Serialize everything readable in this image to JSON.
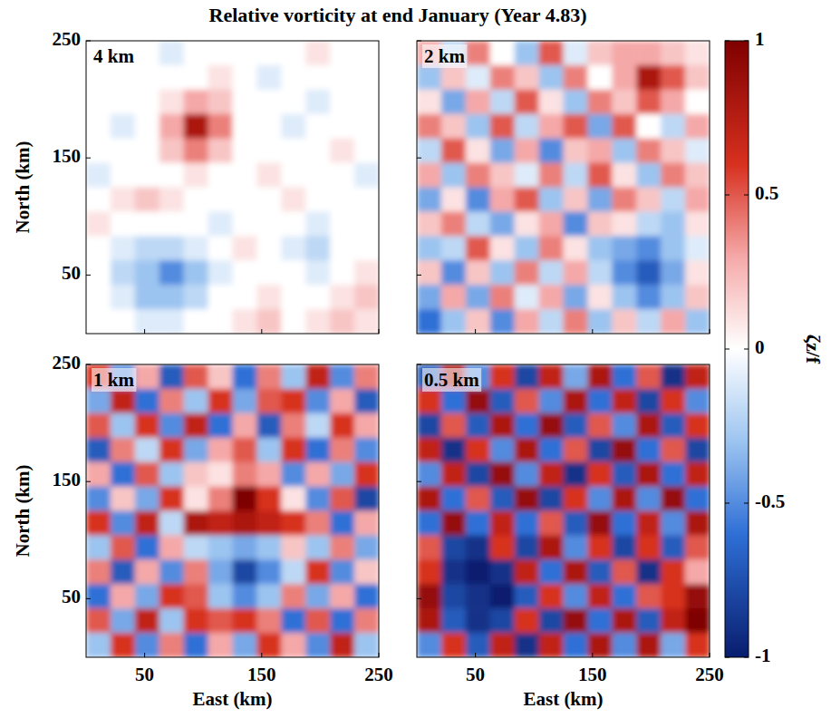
{
  "title": "Relative vorticity at end January (Year 4.83)",
  "colorbar": {
    "range": [
      -1,
      1
    ],
    "ticks": [
      -1,
      -0.5,
      0,
      0.5,
      1
    ],
    "label": "ζz/f"
  },
  "chart_data": [
    {
      "type": "heatmap",
      "panel_label": "4 km",
      "xlim": [
        0,
        250
      ],
      "ylim": [
        0,
        250
      ],
      "xticks": [
        50,
        150,
        250
      ],
      "yticks": [
        50,
        150,
        250
      ],
      "tick_labels": "y",
      "ylabel": "North (km)",
      "cells": [
        [
          0,
          0,
          0,
          -0.1,
          0,
          0,
          0,
          0,
          0,
          0.1,
          0,
          0
        ],
        [
          0,
          0,
          0,
          0,
          0,
          0.1,
          0,
          -0.1,
          0,
          0,
          0,
          0
        ],
        [
          0,
          0,
          0,
          0.1,
          0.3,
          0.2,
          0,
          0,
          0,
          -0.1,
          0,
          0
        ],
        [
          0,
          -0.1,
          0,
          0.3,
          0.8,
          0.4,
          0,
          0,
          -0.1,
          0,
          0,
          0
        ],
        [
          0,
          0,
          0,
          0.2,
          0.4,
          0.2,
          0,
          0,
          0,
          0,
          0.1,
          0
        ],
        [
          -0.1,
          0,
          0,
          0,
          0.1,
          0,
          0,
          0.1,
          0,
          0,
          0,
          -0.1
        ],
        [
          0,
          0.1,
          0.2,
          0.1,
          0,
          0,
          0,
          0,
          0.1,
          0,
          0,
          0
        ],
        [
          0.1,
          0,
          0,
          0,
          0,
          -0.1,
          0,
          0,
          0,
          -0.1,
          0,
          0
        ],
        [
          0,
          -0.1,
          -0.2,
          -0.2,
          -0.1,
          0,
          0.1,
          0,
          -0.1,
          -0.2,
          0,
          0
        ],
        [
          0,
          -0.2,
          -0.3,
          -0.5,
          -0.3,
          -0.1,
          0,
          0,
          0,
          -0.1,
          0,
          0.1
        ],
        [
          0,
          -0.1,
          -0.3,
          -0.3,
          -0.2,
          0,
          0,
          0.1,
          0,
          0,
          0.1,
          0.2
        ],
        [
          0,
          0,
          -0.1,
          -0.1,
          0,
          0,
          0.1,
          0.2,
          0,
          0.1,
          0.2,
          0.1
        ]
      ]
    },
    {
      "type": "heatmap",
      "panel_label": "2 km",
      "xlim": [
        0,
        250
      ],
      "ylim": [
        0,
        250
      ],
      "xticks": [
        50,
        150,
        250
      ],
      "yticks": [
        50,
        150,
        250
      ],
      "tick_labels": false,
      "cells": [
        [
          0.3,
          -0.2,
          0.4,
          0,
          -0.3,
          0.5,
          -0.1,
          0.2,
          0.3,
          0.3,
          0.2,
          0.1
        ],
        [
          -0.3,
          0.2,
          -0.1,
          0.4,
          0.2,
          -0.3,
          0.4,
          0,
          0.3,
          0.8,
          0.5,
          0.2
        ],
        [
          0.1,
          -0.4,
          0.3,
          -0.2,
          0.5,
          0.1,
          -0.3,
          0.4,
          0.2,
          0.5,
          0.3,
          0
        ],
        [
          0.4,
          0.2,
          -0.3,
          0.5,
          -0.2,
          0.3,
          0.5,
          -0.4,
          0.5,
          0,
          -0.2,
          0.3
        ],
        [
          -0.2,
          0.5,
          0.1,
          -0.4,
          0.3,
          -0.5,
          0.2,
          0.3,
          -0.3,
          0.4,
          0.2,
          -0.1
        ],
        [
          0.3,
          -0.3,
          0.4,
          0.2,
          -0.1,
          0.4,
          -0.2,
          0.5,
          0.1,
          -0.3,
          0.4,
          0.2
        ],
        [
          -0.4,
          0.1,
          -0.5,
          0.3,
          0.5,
          -0.3,
          0.2,
          -0.4,
          0.4,
          0.2,
          -0.2,
          0.3
        ],
        [
          0.2,
          0.4,
          -0.2,
          -0.4,
          0.1,
          0.3,
          -0.5,
          0.2,
          0.1,
          -0.2,
          -0.3,
          0.1
        ],
        [
          -0.3,
          -0.2,
          0.5,
          0.1,
          -0.3,
          0.4,
          0.1,
          -0.3,
          -0.4,
          -0.5,
          -0.3,
          -0.1
        ],
        [
          0.2,
          -0.5,
          0.2,
          -0.3,
          0.4,
          -0.2,
          0.3,
          -0.2,
          -0.5,
          -0.7,
          -0.4,
          0.1
        ],
        [
          -0.4,
          0.3,
          -0.4,
          0.4,
          -0.1,
          0.3,
          -0.4,
          0.1,
          -0.3,
          -0.5,
          -0.3,
          0.2
        ],
        [
          -0.6,
          -0.3,
          0.2,
          -0.5,
          0.3,
          -0.2,
          0.4,
          -0.3,
          0.2,
          -0.2,
          0.3,
          -0.3
        ]
      ]
    },
    {
      "type": "heatmap",
      "panel_label": "1 km",
      "xlim": [
        0,
        250
      ],
      "ylim": [
        0,
        250
      ],
      "xticks": [
        50,
        150,
        250
      ],
      "yticks": [
        50,
        150,
        250
      ],
      "tick_labels": true,
      "xlabel": "East (km)",
      "ylabel": "North (km)",
      "cells": [
        [
          0.6,
          -0.5,
          0.3,
          -0.7,
          0.5,
          0.2,
          -0.6,
          0.4,
          -0.3,
          0.7,
          -0.5,
          0.4
        ],
        [
          -0.4,
          0.7,
          -0.6,
          0.4,
          -0.3,
          0.6,
          -0.4,
          0.5,
          0.6,
          -0.5,
          0.3,
          -0.7
        ],
        [
          0.5,
          -0.3,
          0.6,
          -0.5,
          0.7,
          -0.6,
          0.3,
          -0.7,
          0.4,
          -0.2,
          0.6,
          0.3
        ],
        [
          -0.7,
          0.4,
          -0.2,
          0.6,
          -0.4,
          0.3,
          0.5,
          -0.3,
          0.6,
          -0.6,
          0.4,
          -0.5
        ],
        [
          0.3,
          -0.6,
          0.5,
          -0.3,
          0.2,
          0.1,
          0.4,
          0.3,
          -0.5,
          0.3,
          -0.4,
          0.6
        ],
        [
          -0.5,
          0.2,
          -0.4,
          0.6,
          0.1,
          0.4,
          1,
          0.6,
          0.1,
          -0.5,
          0.5,
          -0.8
        ],
        [
          0.6,
          -0.5,
          0.7,
          -0.2,
          0.8,
          0.7,
          0.8,
          0.7,
          0.6,
          0.4,
          -0.6,
          0.3
        ],
        [
          -0.3,
          0.5,
          -0.6,
          0.3,
          -0.2,
          -0.3,
          -0.4,
          -0.3,
          0.2,
          -0.3,
          0.4,
          -0.4
        ],
        [
          0.4,
          -0.7,
          0.3,
          -0.5,
          0.4,
          -0.4,
          -0.8,
          -0.5,
          -0.2,
          0.6,
          -0.5,
          0.2
        ],
        [
          -0.6,
          0.3,
          -0.4,
          0.6,
          0.5,
          -0.3,
          -0.5,
          -0.3,
          0.4,
          -0.4,
          0.3,
          -0.6
        ],
        [
          0.5,
          -0.4,
          0.7,
          -0.3,
          0.6,
          0.5,
          0.6,
          0.4,
          -0.6,
          0.5,
          -0.6,
          0.4
        ],
        [
          -0.3,
          0.6,
          -0.5,
          0.4,
          -0.6,
          0.3,
          -0.4,
          0.6,
          0.3,
          -0.5,
          0.7,
          -0.3
        ]
      ]
    },
    {
      "type": "heatmap",
      "panel_label": "0.5 km",
      "xlim": [
        0,
        250
      ],
      "ylim": [
        0,
        250
      ],
      "xticks": [
        50,
        150,
        250
      ],
      "yticks": [
        50,
        150,
        250
      ],
      "tick_labels": "x",
      "xlabel": "East (km)",
      "cells": [
        [
          -0.7,
          0.8,
          -0.5,
          0.6,
          -0.8,
          0.7,
          -0.4,
          0.8,
          -0.6,
          0.5,
          -0.9,
          0.7
        ],
        [
          0.6,
          -0.6,
          0.9,
          -0.7,
          0.5,
          -0.5,
          0.8,
          -0.6,
          0.7,
          -0.8,
          0.6,
          -0.5
        ],
        [
          -0.8,
          0.5,
          -0.7,
          0.8,
          -0.6,
          0.9,
          -0.7,
          0.5,
          -0.5,
          0.8,
          -0.7,
          0.6
        ],
        [
          0.7,
          -0.9,
          0.6,
          -0.5,
          0.8,
          -0.6,
          0.5,
          -0.8,
          0.9,
          -0.6,
          0.5,
          -0.8
        ],
        [
          -0.5,
          0.7,
          -0.8,
          0.9,
          -0.5,
          0.7,
          -0.9,
          0.6,
          -0.7,
          0.8,
          -0.6,
          0.7
        ],
        [
          0.8,
          -0.6,
          0.5,
          -0.7,
          0.9,
          -0.8,
          0.6,
          -0.5,
          0.8,
          -0.5,
          0.9,
          -0.6
        ],
        [
          -0.6,
          0.9,
          -0.6,
          0.7,
          -0.6,
          0.5,
          -0.7,
          0.9,
          -0.6,
          0.7,
          -0.5,
          0.8
        ],
        [
          0.5,
          -0.8,
          -0.9,
          0.6,
          -0.8,
          0.8,
          -0.5,
          0.6,
          -0.8,
          0.6,
          -0.7,
          0.5
        ],
        [
          0.6,
          -0.9,
          -1,
          -0.9,
          0.7,
          -0.6,
          0.8,
          -0.7,
          0.5,
          -0.9,
          0.6,
          0.3
        ],
        [
          0.9,
          -0.8,
          -0.9,
          -1,
          -0.7,
          0.6,
          -0.5,
          0.7,
          -0.6,
          0.5,
          0.6,
          0.9
        ],
        [
          0.8,
          -0.7,
          -0.9,
          -0.8,
          0.6,
          -0.8,
          0.9,
          -0.6,
          0.8,
          -0.7,
          0.7,
          1
        ],
        [
          -0.5,
          0.6,
          -0.7,
          0.7,
          -0.9,
          0.7,
          -0.6,
          0.8,
          -0.5,
          0.8,
          -0.4,
          0.6
        ]
      ]
    }
  ]
}
